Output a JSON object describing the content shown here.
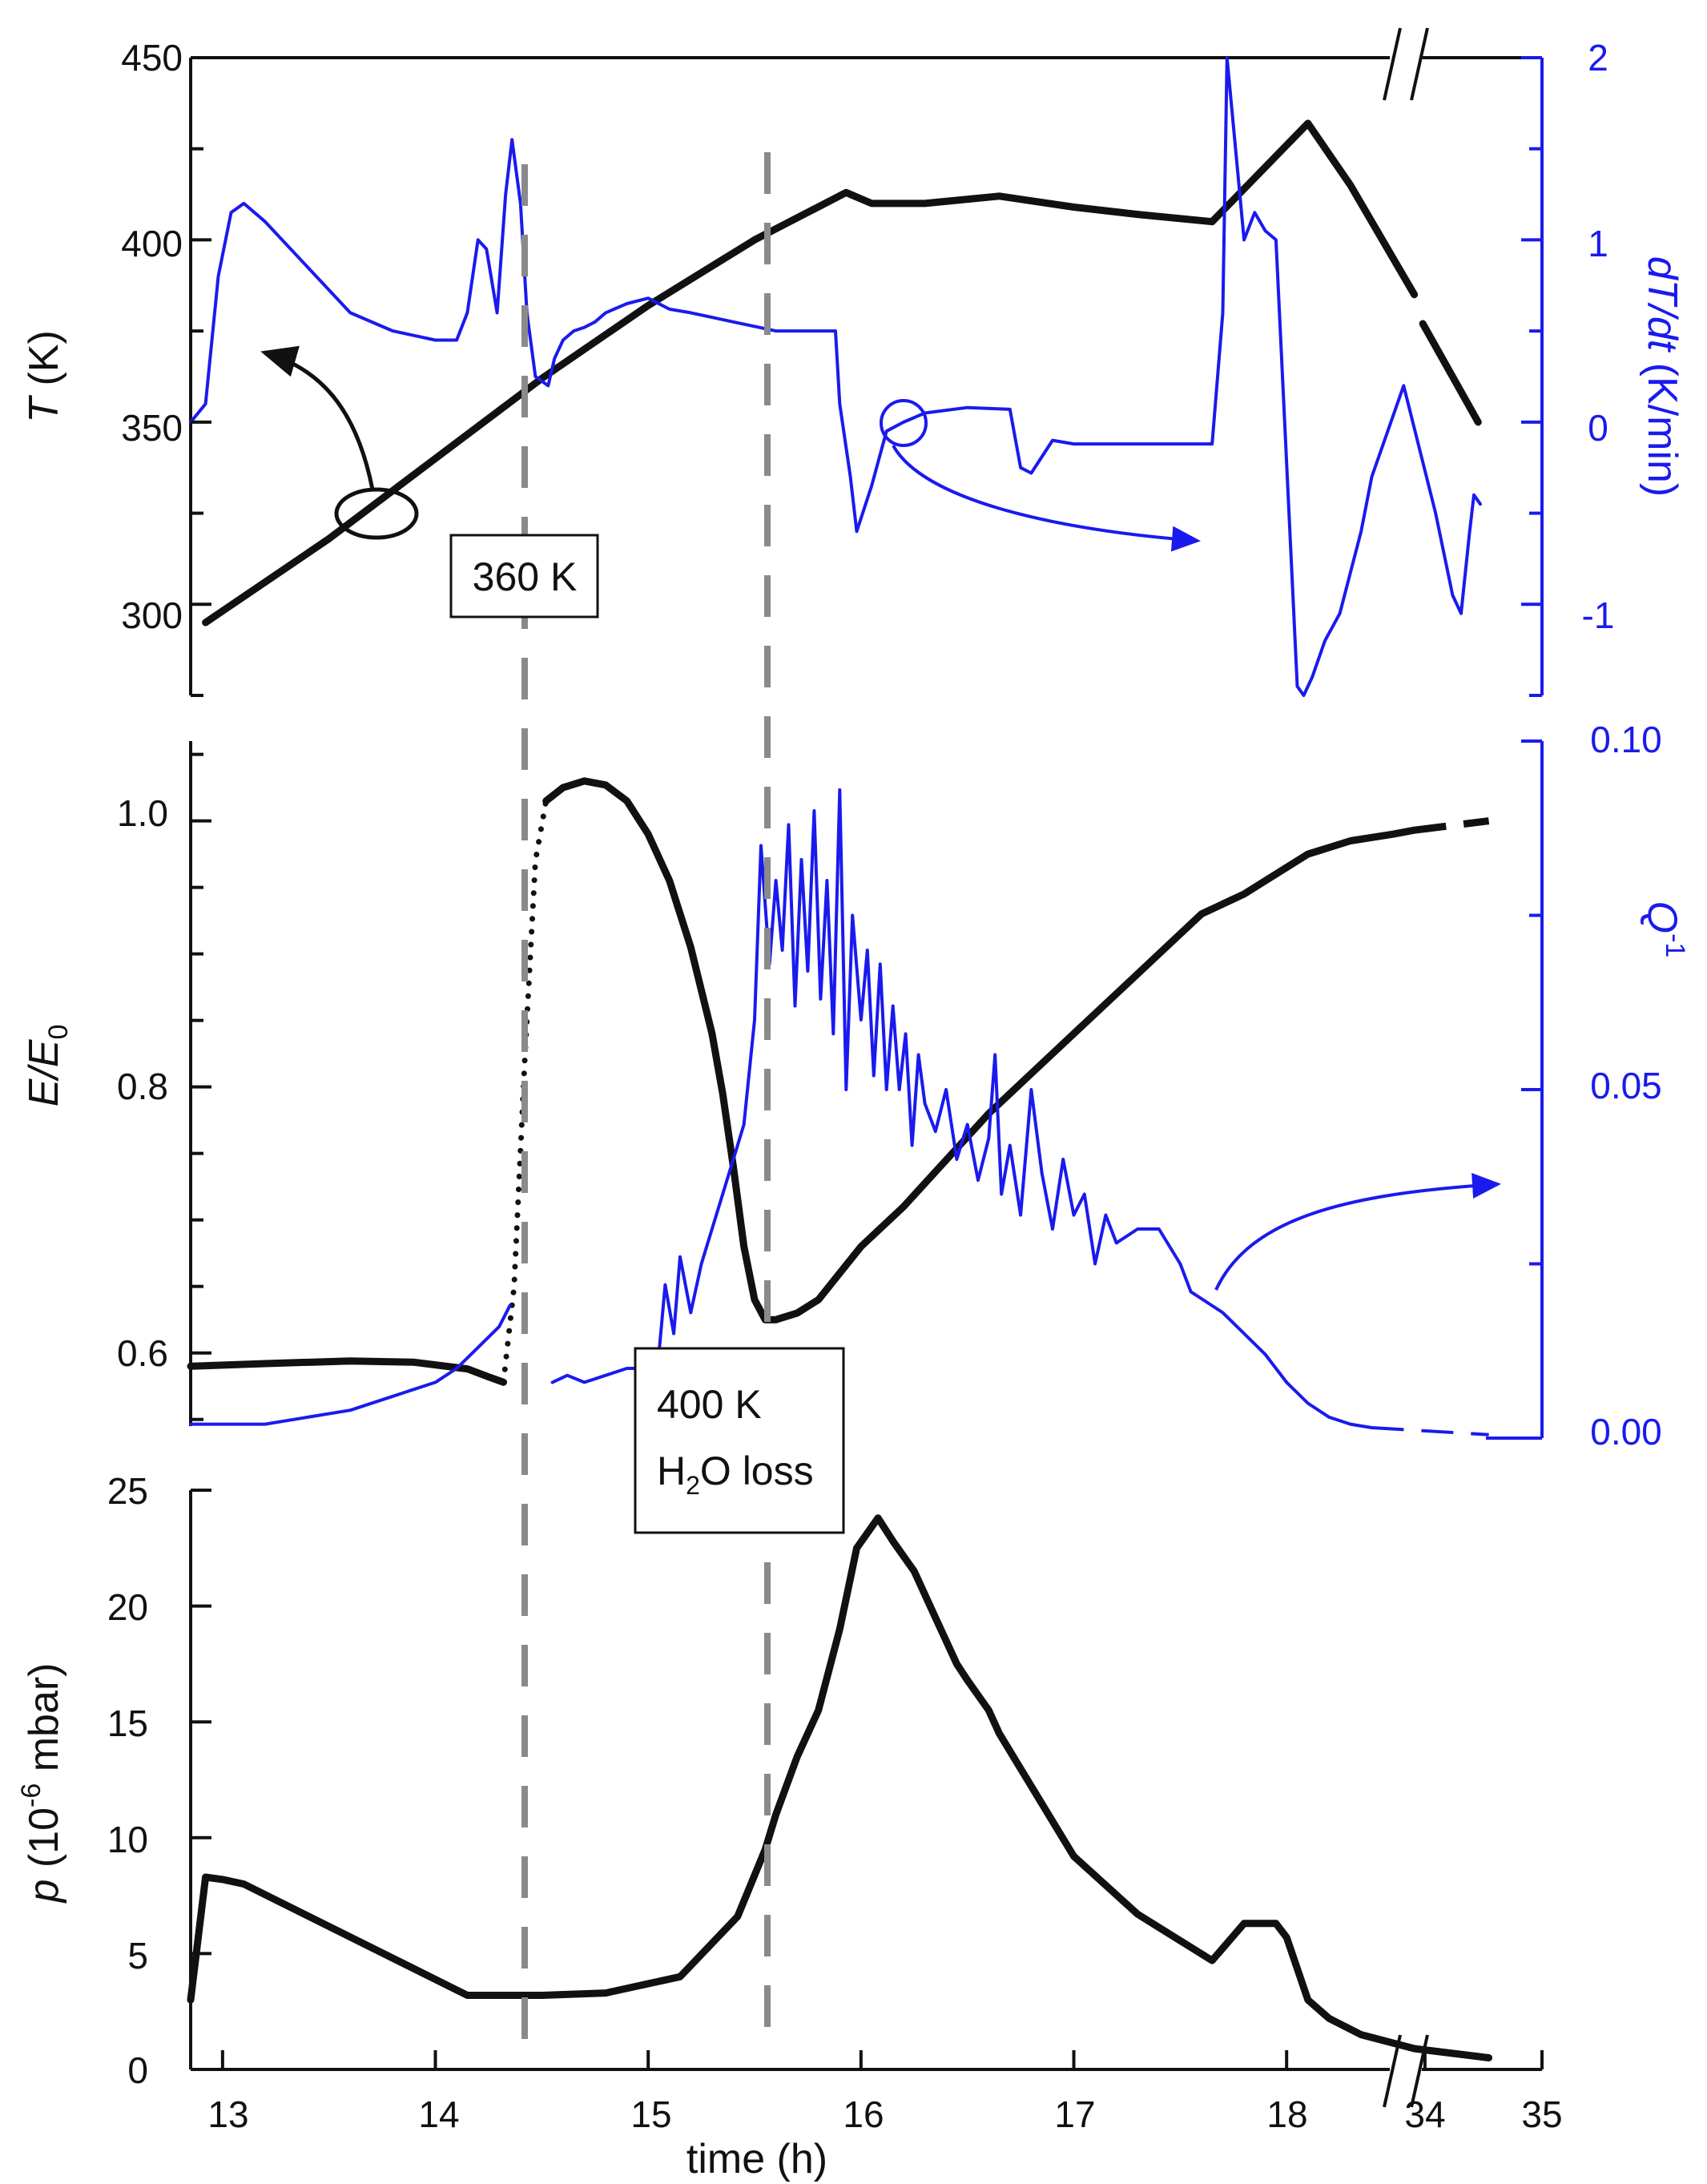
{
  "colors": {
    "black": "#111111",
    "blue": "#1a1aee",
    "guide": "#8a8a8a"
  },
  "chart_data": [
    {
      "panel": "temperature",
      "type": "line",
      "xlim": [
        12.85,
        19.2
      ],
      "ylim_left": [
        275,
        450
      ],
      "ylim_right": [
        -1.5,
        2
      ],
      "left_ticks": [
        "450",
        "400",
        "350",
        "300"
      ],
      "left_tick_values": [
        450,
        400,
        350,
        300
      ],
      "right_ticks": [
        "2",
        "1",
        "0",
        "-1"
      ],
      "right_tick_values": [
        2,
        1,
        0,
        -1
      ],
      "ylabel_left": {
        "sym": "T",
        "rest": " (K)"
      },
      "ylabel_right": {
        "sym": "dT/dt",
        "rest": " (K/min)"
      },
      "series": [
        {
          "axis": "left",
          "color": "#111111",
          "x": [
            12.92,
            13.5,
            14.0,
            14.5,
            15.0,
            15.5,
            15.93,
            16.05,
            16.3,
            16.65,
            17.0,
            17.3,
            17.65,
            17.9,
            18.1,
            18.3,
            18.6
          ],
          "y": [
            295,
            318,
            340,
            362,
            382,
            400,
            413,
            410,
            410,
            412,
            409,
            407,
            405,
            420,
            432,
            415,
            385
          ]
        },
        {
          "axis": "left",
          "color": "#111111",
          "x": [
            18.64,
            18.9
          ],
          "y": [
            377,
            350
          ]
        },
        {
          "axis": "right",
          "color": "#1a1aee",
          "x": [
            12.85,
            12.92,
            12.98,
            13.04,
            13.1,
            13.2,
            13.4,
            13.6,
            13.8,
            14.0,
            14.1,
            14.15,
            14.2,
            14.24,
            14.29,
            14.33,
            14.36,
            14.4,
            14.43,
            14.47,
            14.53,
            14.56,
            14.6,
            14.65,
            14.7,
            14.75,
            14.8,
            14.9,
            15.0,
            15.1,
            15.2,
            15.4,
            15.6,
            15.8,
            15.88,
            15.9,
            15.95,
            15.98,
            16.05,
            16.12,
            16.2,
            16.3,
            16.5,
            16.7,
            16.75,
            16.8,
            16.9,
            17.0,
            17.3,
            17.5,
            17.65,
            17.7,
            17.72,
            17.8,
            17.85,
            17.9,
            17.95,
            18.05,
            18.08,
            18.12,
            18.18,
            18.25,
            18.35,
            18.4,
            18.55,
            18.7,
            18.78,
            18.82,
            18.86,
            18.88,
            18.91
          ],
          "y": [
            0,
            0.1,
            0.8,
            1.15,
            1.2,
            1.1,
            0.85,
            0.6,
            0.5,
            0.45,
            0.45,
            0.6,
            1.0,
            0.95,
            0.6,
            1.25,
            1.55,
            1.2,
            0.6,
            0.25,
            0.2,
            0.35,
            0.45,
            0.5,
            0.52,
            0.55,
            0.6,
            0.65,
            0.68,
            0.62,
            0.6,
            0.55,
            0.5,
            0.5,
            0.5,
            0.1,
            -0.3,
            -0.6,
            -0.35,
            -0.05,
            0.0,
            0.05,
            0.08,
            0.07,
            -0.25,
            -0.28,
            -0.1,
            -0.12,
            -0.12,
            -0.12,
            -0.12,
            0.6,
            2.0,
            1.0,
            1.15,
            1.05,
            1.0,
            -1.45,
            -1.5,
            -1.4,
            -1.2,
            -1.05,
            -0.6,
            -0.3,
            0.2,
            -0.5,
            -0.95,
            -1.05,
            -0.6,
            -0.4,
            -0.45
          ]
        }
      ]
    },
    {
      "panel": "modulus",
      "type": "line",
      "xlim": [
        12.85,
        19.2
      ],
      "ylim_left": [
        0.545,
        1.06
      ],
      "ylim_right": [
        0,
        0.1
      ],
      "left_ticks": [
        "1.0",
        "0.8",
        "0.6"
      ],
      "left_tick_values": [
        1.0,
        0.8,
        0.6
      ],
      "right_ticks": [
        "0.10",
        "0.05",
        "0.00"
      ],
      "right_tick_values": [
        0.1,
        0.05,
        0.0
      ],
      "ylabel_left": {
        "sym": "E/E",
        "sub": "0"
      },
      "ylabel_right": {
        "sym": "Q",
        "sup": "-1"
      },
      "series": [
        {
          "axis": "left",
          "color": "#111111",
          "style": "solid",
          "x": [
            12.85,
            13.2,
            13.6,
            13.9,
            14.15,
            14.25,
            14.32
          ],
          "y": [
            0.59,
            0.592,
            0.594,
            0.593,
            0.588,
            0.582,
            0.578
          ]
        },
        {
          "axis": "left",
          "color": "#111111",
          "style": "dotted",
          "x": [
            14.32,
            14.37,
            14.42,
            14.47,
            14.52
          ],
          "y": [
            0.578,
            0.65,
            0.82,
            0.97,
            1.015
          ]
        },
        {
          "axis": "left",
          "color": "#111111",
          "style": "solid",
          "x": [
            14.52,
            14.6,
            14.7,
            14.8,
            14.9,
            15.0,
            15.1,
            15.2,
            15.3,
            15.35,
            15.4,
            15.45,
            15.5,
            15.55,
            15.6,
            15.7,
            15.8,
            15.9,
            16.0,
            16.2,
            16.4,
            16.6,
            16.8,
            17.0,
            17.2,
            17.4,
            17.6,
            17.8,
            17.9,
            18.1,
            18.3,
            18.5,
            18.6
          ],
          "y": [
            1.015,
            1.025,
            1.03,
            1.027,
            1.015,
            0.99,
            0.955,
            0.905,
            0.84,
            0.795,
            0.74,
            0.68,
            0.64,
            0.625,
            0.625,
            0.63,
            0.64,
            0.66,
            0.68,
            0.71,
            0.745,
            0.78,
            0.81,
            0.84,
            0.87,
            0.9,
            0.93,
            0.945,
            0.955,
            0.975,
            0.985,
            0.99,
            0.993
          ]
        },
        {
          "axis": "left",
          "color": "#111111",
          "style": "dashed",
          "x": [
            18.6,
            18.95
          ],
          "y": [
            0.993,
            1.0
          ]
        },
        {
          "axis": "right",
          "color": "#1a1aee",
          "style": "solid",
          "x": [
            12.85,
            13.0,
            13.2,
            13.4,
            13.6,
            13.8,
            14.0,
            14.1,
            14.2,
            14.3,
            14.35
          ],
          "y": [
            0.002,
            0.002,
            0.002,
            0.003,
            0.004,
            0.006,
            0.008,
            0.01,
            0.013,
            0.016,
            0.019
          ]
        },
        {
          "axis": "right",
          "color": "#1a1aee",
          "style": "solid",
          "x": [
            14.55,
            14.62,
            14.7,
            14.8,
            14.9,
            15.0,
            15.05,
            15.08,
            15.12,
            15.15,
            15.2,
            15.25,
            15.3,
            15.35,
            15.4,
            15.45,
            15.5,
            15.53,
            15.57,
            15.6,
            15.63,
            15.66,
            15.69,
            15.72,
            15.75,
            15.78,
            15.81,
            15.84,
            15.87,
            15.9,
            15.93,
            15.96,
            16.0,
            16.03,
            16.06,
            16.09,
            16.12,
            16.15,
            16.18,
            16.21,
            16.24,
            16.27,
            16.3,
            16.35,
            16.4,
            16.45,
            16.5,
            16.55,
            16.6,
            16.63,
            16.66,
            16.7,
            16.75,
            16.8,
            16.85,
            16.9,
            16.95,
            17.0,
            17.05,
            17.1,
            17.15,
            17.2,
            17.3,
            17.4,
            17.5,
            17.55,
            17.6,
            17.7,
            17.8,
            17.9,
            18.0,
            18.1,
            18.2,
            18.3,
            18.4
          ],
          "y": [
            0.008,
            0.009,
            0.008,
            0.009,
            0.01,
            0.01,
            0.012,
            0.022,
            0.015,
            0.026,
            0.018,
            0.025,
            0.03,
            0.035,
            0.04,
            0.045,
            0.06,
            0.085,
            0.068,
            0.08,
            0.07,
            0.088,
            0.062,
            0.083,
            0.067,
            0.09,
            0.063,
            0.08,
            0.058,
            0.093,
            0.05,
            0.075,
            0.06,
            0.07,
            0.052,
            0.068,
            0.05,
            0.062,
            0.05,
            0.058,
            0.042,
            0.055,
            0.048,
            0.044,
            0.05,
            0.04,
            0.045,
            0.037,
            0.043,
            0.055,
            0.035,
            0.042,
            0.032,
            0.05,
            0.038,
            0.03,
            0.04,
            0.032,
            0.035,
            0.025,
            0.032,
            0.028,
            0.03,
            0.03,
            0.025,
            0.021,
            0.02,
            0.018,
            0.015,
            0.012,
            0.008,
            0.005,
            0.003,
            0.002,
            0.0015
          ]
        },
        {
          "axis": "right",
          "color": "#1a1aee",
          "style": "dashed",
          "x": [
            18.4,
            18.95
          ],
          "y": [
            0.0015,
            0.0005
          ]
        }
      ]
    },
    {
      "panel": "pressure",
      "type": "line",
      "xlim": [
        12.85,
        19.2
      ],
      "ylim_left": [
        0,
        25
      ],
      "left_ticks": [
        "25",
        "20",
        "15",
        "10",
        "5",
        "0"
      ],
      "left_tick_values": [
        25,
        20,
        15,
        10,
        5,
        0
      ],
      "x_tick_values": [
        13,
        14,
        15,
        16,
        17,
        18,
        18.65,
        19.2
      ],
      "x_ticks": [
        "13",
        "14",
        "15",
        "16",
        "17",
        "18",
        "34",
        "35"
      ],
      "xlabel": "time (h)",
      "ylabel_left": {
        "sym": "p",
        "pre": " (10",
        "sup": "-6",
        "post": " mbar)"
      },
      "series": [
        {
          "axis": "left",
          "color": "#111111",
          "x": [
            12.85,
            12.92,
            13.0,
            13.1,
            14.15,
            14.5,
            14.8,
            15.15,
            15.42,
            15.55,
            15.6,
            15.7,
            15.8,
            15.9,
            15.98,
            16.08,
            16.15,
            16.25,
            16.35,
            16.45,
            16.5,
            16.6,
            16.65,
            17.0,
            17.3,
            17.65,
            17.8,
            17.95,
            18.0,
            18.1,
            18.2,
            18.35,
            18.6,
            18.95
          ],
          "y": [
            3,
            8.3,
            8.2,
            8.0,
            3.2,
            3.2,
            3.3,
            4.0,
            6.6,
            9.5,
            11,
            13.5,
            15.5,
            19,
            22.5,
            23.8,
            22.8,
            21.5,
            19.5,
            17.5,
            16.8,
            15.5,
            14.5,
            9.2,
            6.7,
            4.7,
            6.3,
            6.3,
            5.7,
            3.0,
            2.2,
            1.5,
            0.9,
            0.5
          ]
        }
      ]
    }
  ],
  "annotations": {
    "label_360": "360 K",
    "label_400": "400 K",
    "label_h2o_pre": "H",
    "label_h2o_sub": "2",
    "label_h2o_post": "O loss"
  }
}
